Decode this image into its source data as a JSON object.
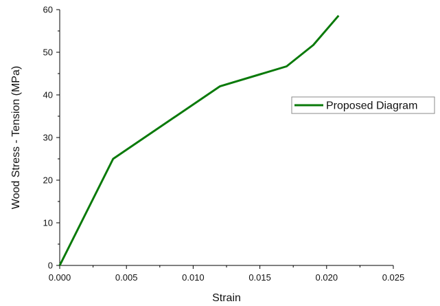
{
  "chart_data": {
    "type": "line",
    "xlabel": "Strain",
    "ylabel": "Wood Stress - Tension (MPa)",
    "xlim": [
      0,
      0.025
    ],
    "ylim": [
      0,
      60
    ],
    "x_ticks": [
      "0.000",
      "0.005",
      "0.010",
      "0.015",
      "0.020",
      "0.025"
    ],
    "y_ticks": [
      "0",
      "10",
      "20",
      "30",
      "40",
      "50",
      "60"
    ],
    "grid": false,
    "legend_position": "right",
    "series": [
      {
        "name": "Proposed Diagram",
        "color": "#0a7a0a",
        "x": [
          0,
          0.004,
          0.012,
          0.017,
          0.019,
          0.0209
        ],
        "y": [
          0,
          25,
          42,
          46.7,
          51.7,
          58.6
        ]
      }
    ]
  }
}
